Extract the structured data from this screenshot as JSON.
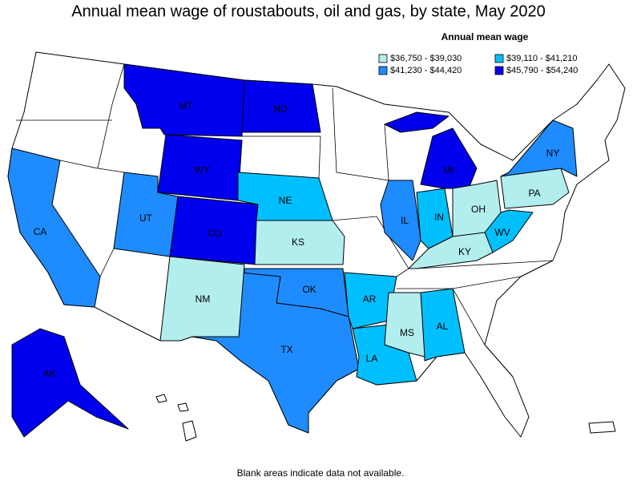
{
  "title": "Annual mean wage of roustabouts, oil and gas, by state, May 2020",
  "legend": {
    "title": "Annual mean wage",
    "items": [
      {
        "label": "$36,750 - $39,030",
        "color": "#b3eeee"
      },
      {
        "label": "$39,110 - $41,210",
        "color": "#00bfff"
      },
      {
        "label": "$41,230 - $44,420",
        "color": "#1e8cff"
      },
      {
        "label": "$45,790 - $54,240",
        "color": "#0000ee"
      }
    ]
  },
  "states": [
    {
      "label": "MT",
      "bin": 3
    },
    {
      "label": "ND",
      "bin": 3
    },
    {
      "label": "WY",
      "bin": 3
    },
    {
      "label": "CO",
      "bin": 3
    },
    {
      "label": "MI",
      "bin": 3
    },
    {
      "label": "AK",
      "bin": 3
    },
    {
      "label": "NY",
      "bin": 2
    },
    {
      "label": "CA",
      "bin": 2
    },
    {
      "label": "UT",
      "bin": 2
    },
    {
      "label": "IL",
      "bin": 2
    },
    {
      "label": "OK",
      "bin": 2
    },
    {
      "label": "TX",
      "bin": 2
    },
    {
      "label": "NE",
      "bin": 1
    },
    {
      "label": "IN",
      "bin": 1
    },
    {
      "label": "WV",
      "bin": 1
    },
    {
      "label": "AR",
      "bin": 1
    },
    {
      "label": "LA",
      "bin": 1
    },
    {
      "label": "AL",
      "bin": 1
    },
    {
      "label": "OH",
      "bin": 0
    },
    {
      "label": "PA",
      "bin": 0
    },
    {
      "label": "KS",
      "bin": 0
    },
    {
      "label": "KY",
      "bin": 0
    },
    {
      "label": "NM",
      "bin": 0
    },
    {
      "label": "MS",
      "bin": 0
    }
  ],
  "note": "Blank areas indicate data not available."
}
